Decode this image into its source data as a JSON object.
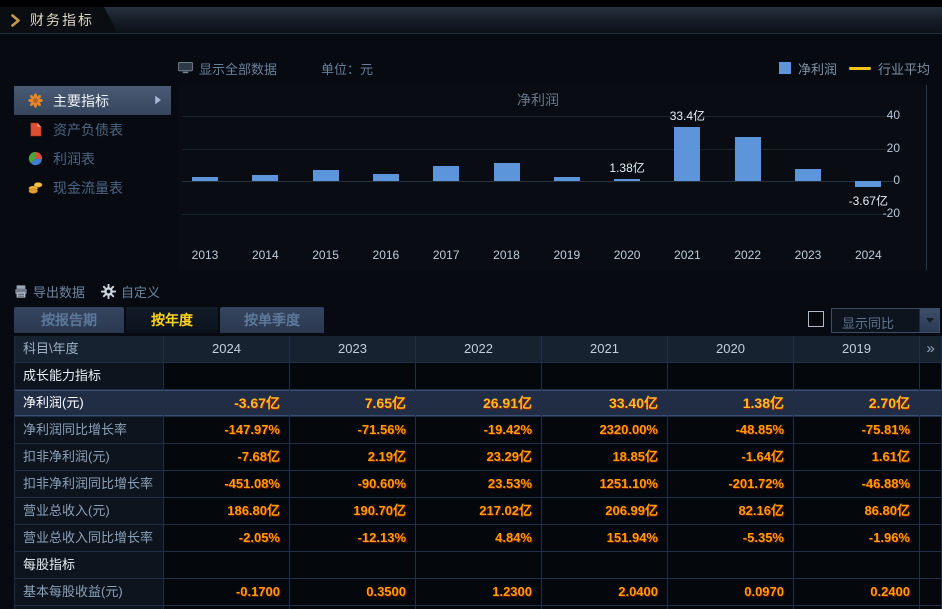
{
  "titlebar": {
    "title": "财务指标",
    "icon": "chevron-right-icon"
  },
  "chart_header": {
    "show_all_label": "显示全部数据",
    "show_all_icon": "monitor-icon",
    "unit_label": "单位：元",
    "legend": [
      {
        "id": "net-profit",
        "label": "净利润",
        "swatch": "bar",
        "color": "#5d95da"
      },
      {
        "id": "industry-average",
        "label": "行业平均",
        "swatch": "line",
        "color": "#f0c419"
      }
    ]
  },
  "sidebar": {
    "items": [
      {
        "id": "main-indicators",
        "label": "主要指标",
        "icon": "starburst-icon",
        "active": true
      },
      {
        "id": "balance-sheet",
        "label": "资产负债表",
        "icon": "document-icon",
        "active": false
      },
      {
        "id": "income-statement",
        "label": "利润表",
        "icon": "pie-chart-icon",
        "active": false
      },
      {
        "id": "cash-flow",
        "label": "现金流量表",
        "icon": "coins-icon",
        "active": false
      }
    ]
  },
  "chart_data": {
    "type": "bar",
    "title": "净利润",
    "unit": "亿",
    "categories": [
      "2013",
      "2014",
      "2015",
      "2016",
      "2017",
      "2018",
      "2019",
      "2020",
      "2021",
      "2022",
      "2023",
      "2024"
    ],
    "series": [
      {
        "name": "净利润",
        "values": [
          2.5,
          4.0,
          6.9,
          4.2,
          9.3,
          11.3,
          2.7,
          1.38,
          33.4,
          26.91,
          7.65,
          -3.67
        ]
      }
    ],
    "yticks": [
      40,
      20,
      0,
      -20
    ],
    "ylim": [
      -36,
      52
    ],
    "grid": true,
    "legend_position": "top-right",
    "legend_entries": [
      "净利润",
      "行业平均"
    ],
    "bar_color": "#5d95da",
    "industry_avg_color": "#f0c419",
    "annotations": [
      {
        "category": "2020",
        "index": 7,
        "text": "1.38亿",
        "placement": "above"
      },
      {
        "category": "2021",
        "index": 8,
        "text": "33.4亿",
        "placement": "above"
      },
      {
        "category": "2024",
        "index": 11,
        "text": "-3.67亿",
        "placement": "below"
      }
    ]
  },
  "toolbar": {
    "export_label": "导出数据",
    "export_icon": "export-icon",
    "customize_label": "自定义",
    "customize_icon": "gear-icon"
  },
  "tabs": [
    {
      "id": "by-report-period",
      "label": "按报告期",
      "active": false
    },
    {
      "id": "by-year",
      "label": "按年度",
      "active": true
    },
    {
      "id": "by-quarter",
      "label": "按单季度",
      "active": false
    }
  ],
  "yoy_control": {
    "checkbox_checked": false,
    "label": "显示同比"
  },
  "table": {
    "corner_header": "科目\\年度",
    "year_columns": [
      "2024",
      "2023",
      "2022",
      "2021",
      "2020",
      "2019"
    ],
    "more_icon": "»",
    "rows": [
      {
        "type": "section",
        "label": "成长能力指标",
        "values": [
          "",
          "",
          "",
          "",
          "",
          ""
        ]
      },
      {
        "type": "data",
        "selected": true,
        "label": "净利润(元)",
        "values": [
          "-3.67亿",
          "7.65亿",
          "26.91亿",
          "33.40亿",
          "1.38亿",
          "2.70亿"
        ]
      },
      {
        "type": "data",
        "label": "净利润同比增长率",
        "values": [
          "-147.97%",
          "-71.56%",
          "-19.42%",
          "2320.00%",
          "-48.85%",
          "-75.81%"
        ]
      },
      {
        "type": "data",
        "label": "扣非净利润(元)",
        "values": [
          "-7.68亿",
          "2.19亿",
          "23.29亿",
          "18.85亿",
          "-1.64亿",
          "1.61亿"
        ]
      },
      {
        "type": "data",
        "label": "扣非净利润同比增长率",
        "values": [
          "-451.08%",
          "-90.60%",
          "23.53%",
          "1251.10%",
          "-201.72%",
          "-46.88%"
        ]
      },
      {
        "type": "data",
        "label": "营业总收入(元)",
        "values": [
          "186.80亿",
          "190.70亿",
          "217.02亿",
          "206.99亿",
          "82.16亿",
          "86.80亿"
        ]
      },
      {
        "type": "data",
        "label": "营业总收入同比增长率",
        "values": [
          "-2.05%",
          "-12.13%",
          "4.84%",
          "151.94%",
          "-5.35%",
          "-1.96%"
        ]
      },
      {
        "type": "section",
        "label": "每股指标",
        "values": [
          "",
          "",
          "",
          "",
          "",
          ""
        ]
      },
      {
        "type": "data",
        "label": "基本每股收益(元)",
        "values": [
          "-0.1700",
          "0.3500",
          "1.2300",
          "2.0400",
          "0.0970",
          "0.2400"
        ]
      },
      {
        "type": "clipped",
        "label": "",
        "values": [
          "",
          "",
          "",
          "",
          "",
          ""
        ]
      }
    ]
  }
}
